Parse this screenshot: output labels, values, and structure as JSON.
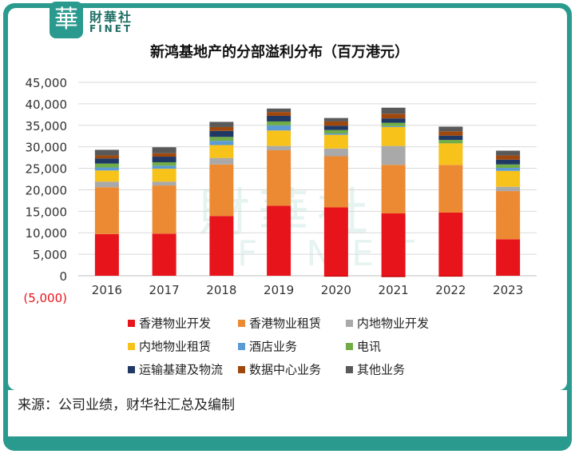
{
  "logo": {
    "mark": "華",
    "cn": "財華社",
    "en": "FINET"
  },
  "watermark": {
    "cn": "財華社",
    "en": "FINET"
  },
  "source": "来源：公司业绩，财华社汇总及编制",
  "colors": {
    "frame": "#2a9a8f",
    "series": [
      "#e8141b",
      "#ec8a33",
      "#a9a9a9",
      "#f7c21a",
      "#5b9bd5",
      "#70ad47",
      "#1f3864",
      "#9e480e",
      "#595959"
    ]
  },
  "chart_data": {
    "type": "bar",
    "stacked": true,
    "title": "新鸿基地产的分部溢利分布（百万港元）",
    "categories": [
      "2016",
      "2017",
      "2018",
      "2019",
      "2020",
      "2021",
      "2022",
      "2023"
    ],
    "ylim": [
      -5000,
      45000
    ],
    "yticks": [
      "(5,000)",
      "0",
      "5,000",
      "10,000",
      "15,000",
      "20,000",
      "25,000",
      "30,000",
      "35,000",
      "40,000",
      "45,000"
    ],
    "ytick_values": [
      -5000,
      0,
      5000,
      10000,
      15000,
      20000,
      25000,
      30000,
      35000,
      40000,
      45000
    ],
    "legend_position": "bottom",
    "series": [
      {
        "name": "香港物业开发",
        "values": [
          9700,
          9800,
          13900,
          16300,
          15900,
          14500,
          14700,
          8500
        ]
      },
      {
        "name": "香港物业租赁",
        "values": [
          10900,
          11200,
          12000,
          12900,
          11900,
          11300,
          11100,
          11200
        ]
      },
      {
        "name": "内地物业开发",
        "values": [
          1300,
          900,
          1500,
          1000,
          1800,
          4400,
          0,
          1000
        ]
      },
      {
        "name": "内地物业租赁",
        "values": [
          2600,
          3000,
          3000,
          3600,
          3200,
          4400,
          5000,
          3700
        ]
      },
      {
        "name": "酒店业务",
        "values": [
          700,
          700,
          1000,
          1200,
          300,
          200,
          0,
          700
        ]
      },
      {
        "name": "电讯",
        "values": [
          900,
          800,
          900,
          900,
          800,
          800,
          800,
          800
        ]
      },
      {
        "name": "运输基建及物流",
        "values": [
          1200,
          1300,
          1400,
          1300,
          1000,
          1000,
          1000,
          1100
        ]
      },
      {
        "name": "数据中心业务",
        "values": [
          700,
          800,
          900,
          900,
          1000,
          1100,
          1000,
          1000
        ]
      },
      {
        "name": "其他业务",
        "values": [
          1300,
          1400,
          1200,
          800,
          800,
          1400,
          1100,
          1100
        ]
      }
    ],
    "negative": {
      "name": "香港物业开发",
      "values": [
        0,
        0,
        0,
        0,
        -200,
        -300,
        -200,
        0
      ]
    }
  }
}
